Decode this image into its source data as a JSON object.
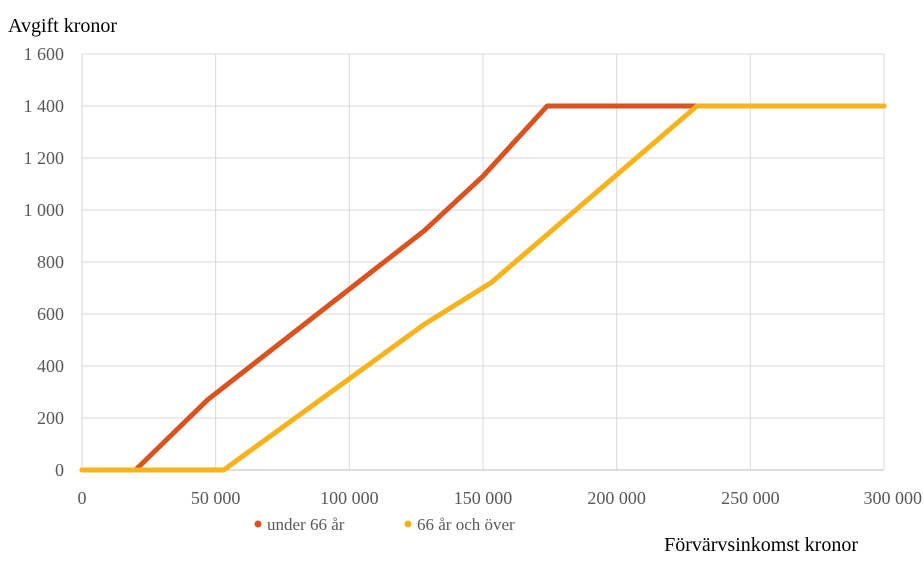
{
  "chart_data": {
    "type": "line",
    "ylabel": "Avgift kronor",
    "xlabel": "Förvärvsinkomst kronor",
    "xlim": [
      0,
      300000
    ],
    "ylim": [
      0,
      1600
    ],
    "x_ticks": [
      0,
      50000,
      100000,
      150000,
      200000,
      250000,
      300000
    ],
    "x_tick_labels": [
      "0",
      "50 000",
      "100 000",
      "150 000",
      "200 000",
      "250 000",
      "300 000"
    ],
    "y_ticks": [
      0,
      200,
      400,
      600,
      800,
      1000,
      1200,
      1400,
      1600
    ],
    "y_tick_labels": [
      "0",
      "200",
      "400",
      "600",
      "800",
      "1 000",
      "1 200",
      "1 400",
      "1 600"
    ],
    "grid": true,
    "legend_position": "bottom",
    "series": [
      {
        "name": "under 66 år",
        "color": "#D9531E",
        "points": [
          [
            0,
            0
          ],
          [
            20000,
            0
          ],
          [
            47000,
            270
          ],
          [
            128000,
            920
          ],
          [
            150000,
            1130
          ],
          [
            174000,
            1400
          ],
          [
            300000,
            1400
          ]
        ]
      },
      {
        "name": "66 år och över",
        "color": "#F6B31B",
        "points": [
          [
            0,
            0
          ],
          [
            53000,
            0
          ],
          [
            128000,
            560
          ],
          [
            153000,
            720
          ],
          [
            230000,
            1400
          ],
          [
            300000,
            1400
          ]
        ]
      }
    ]
  }
}
